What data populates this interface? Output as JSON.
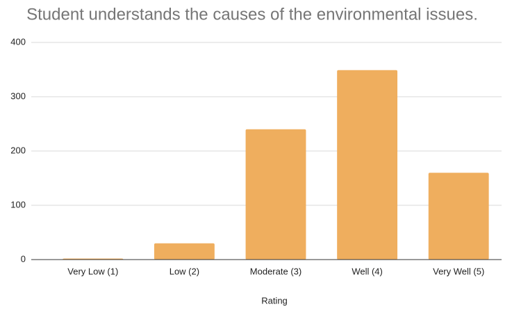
{
  "chart_data": {
    "type": "bar",
    "title": "Student understands the causes of the environmental issues.",
    "x_label": "Rating",
    "categories": [
      "Very Low (1)",
      "Low (2)",
      "Moderate (3)",
      "Well (4)",
      "Very Well (5)"
    ],
    "values": [
      2,
      30,
      240,
      349,
      160
    ],
    "color": "#efae5e",
    "ylim": [
      0,
      400
    ],
    "yticks": [
      0,
      100,
      200,
      300,
      400
    ],
    "grid": true
  }
}
